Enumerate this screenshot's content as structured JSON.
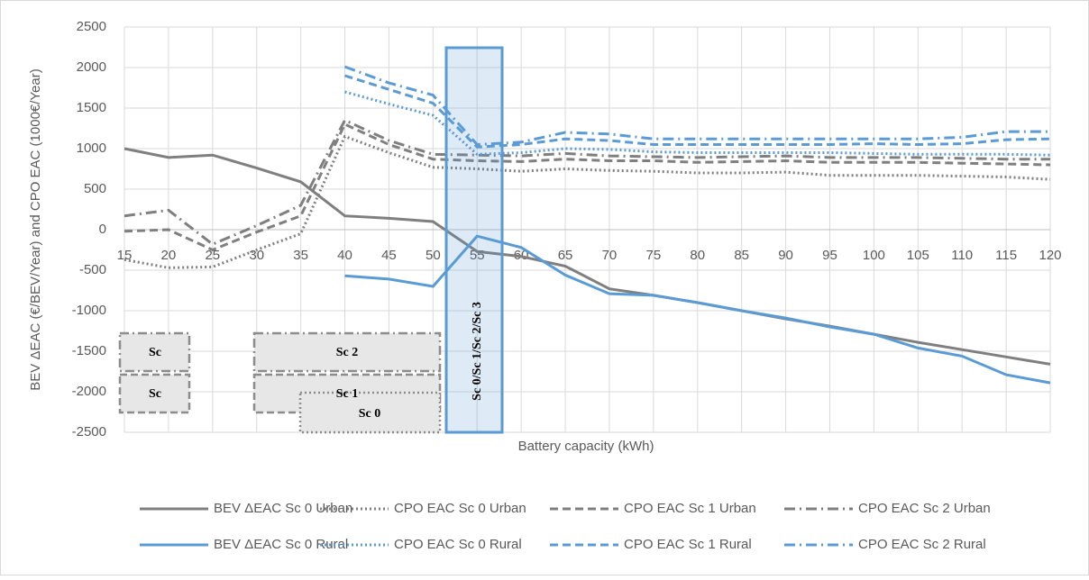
{
  "chart_data": {
    "type": "line",
    "xlabel": "Battery capacity (kWh)",
    "ylabel": "BEV ΔEAC (€/BEV/Year) and CPO EAC (1000€/Year)",
    "x": [
      15,
      20,
      25,
      30,
      35,
      40,
      45,
      50,
      55,
      60,
      65,
      70,
      75,
      80,
      85,
      90,
      95,
      100,
      105,
      110,
      115,
      120
    ],
    "xlim": [
      15,
      120
    ],
    "xticks": [
      15,
      20,
      25,
      30,
      35,
      40,
      45,
      50,
      55,
      60,
      65,
      70,
      75,
      80,
      85,
      90,
      95,
      100,
      105,
      110,
      115,
      120
    ],
    "ylim": [
      -2500,
      2500
    ],
    "yticks": [
      -2500,
      -2000,
      -1500,
      -1000,
      -500,
      0,
      500,
      1000,
      1500,
      2000,
      2500
    ],
    "grid": true,
    "legend": "bottom",
    "annotations": [
      "Sc 0/Sc 1/Sc 2/Sc 3",
      "Sc",
      "Sc",
      "Sc 2",
      "Sc 1",
      "Sc 0"
    ],
    "series": [
      {
        "name": "BEV ΔEAC Sc 0 Urban",
        "color": "#7f7f7f",
        "dash": "solid",
        "values": [
          1000,
          890,
          920,
          760,
          590,
          170,
          140,
          100,
          -270,
          -330,
          -450,
          -730,
          -810,
          -900,
          -1000,
          -1100,
          -1190,
          -1290,
          -1390,
          -1480,
          -1570,
          -1660
        ]
      },
      {
        "name": "CPO EAC Sc 0 Urban",
        "color": "#7f7f7f",
        "dash": "dot",
        "values": [
          -370,
          -470,
          -460,
          -250,
          -50,
          1150,
          950,
          770,
          750,
          720,
          750,
          730,
          720,
          700,
          700,
          710,
          670,
          670,
          670,
          660,
          650,
          620
        ]
      },
      {
        "name": "CPO EAC Sc 1 Urban",
        "color": "#7f7f7f",
        "dash": "dash",
        "values": [
          -20,
          0,
          -250,
          -30,
          170,
          1300,
          1050,
          870,
          850,
          840,
          870,
          850,
          850,
          830,
          840,
          850,
          830,
          830,
          830,
          820,
          810,
          800
        ]
      },
      {
        "name": "CPO EAC Sc 2 Urban",
        "color": "#7f7f7f",
        "dash": "dashdot",
        "values": [
          170,
          240,
          -180,
          50,
          300,
          1350,
          1100,
          930,
          920,
          910,
          940,
          910,
          900,
          890,
          900,
          910,
          890,
          890,
          890,
          880,
          870,
          870
        ]
      },
      {
        "name": "BEV ΔEAC Sc 0 Rural",
        "color": "#5b9bd5",
        "dash": "solid",
        "values": [
          null,
          null,
          null,
          null,
          null,
          -570,
          -610,
          -700,
          -80,
          -220,
          -560,
          -790,
          -810,
          -900,
          -1000,
          -1090,
          -1200,
          -1290,
          -1460,
          -1560,
          -1790,
          -1890
        ]
      },
      {
        "name": "CPO EAC Sc 0 Rural",
        "color": "#5b9bd5",
        "dash": "dot",
        "values": [
          null,
          null,
          null,
          null,
          null,
          1700,
          1550,
          1410,
          930,
          950,
          1000,
          990,
          960,
          950,
          950,
          950,
          950,
          940,
          930,
          930,
          930,
          920
        ]
      },
      {
        "name": "CPO EAC Sc 1 Rural",
        "color": "#5b9bd5",
        "dash": "dash",
        "values": [
          null,
          null,
          null,
          null,
          null,
          1900,
          1730,
          1560,
          1020,
          1050,
          1120,
          1100,
          1050,
          1050,
          1050,
          1050,
          1050,
          1060,
          1050,
          1060,
          1110,
          1120
        ]
      },
      {
        "name": "CPO EAC Sc 2 Rural",
        "color": "#5b9bd5",
        "dash": "dashdot",
        "values": [
          null,
          null,
          null,
          null,
          null,
          2010,
          1810,
          1660,
          1050,
          1080,
          1200,
          1180,
          1120,
          1120,
          1120,
          1120,
          1120,
          1120,
          1120,
          1140,
          1210,
          1210
        ]
      }
    ]
  }
}
